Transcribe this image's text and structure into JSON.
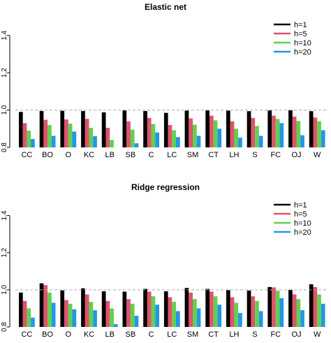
{
  "colors": {
    "h=1": "#000000",
    "h=5": "#df536b",
    "h=10": "#61d04f",
    "h=20": "#2297e6",
    "reference_line": "#aaaaaa",
    "axis": "#000000"
  },
  "chart_data": [
    {
      "type": "bar",
      "title": "Elastic net",
      "xlabel": "",
      "ylabel": "",
      "ylim": [
        0.8,
        1.5
      ],
      "yticks": [
        "0.8",
        "1.0",
        "1.2",
        "1.4"
      ],
      "grid": false,
      "reference_line": 1.0,
      "legend_position": "top-right",
      "categories": [
        "CC",
        "BO",
        "O",
        "KC",
        "LB",
        "SB",
        "C",
        "LC",
        "SM",
        "CT",
        "LH",
        "S",
        "FC",
        "OJ",
        "W"
      ],
      "series": [
        {
          "name": "h=1",
          "values": [
            0.99,
            0.995,
            0.996,
            0.995,
            0.988,
            0.998,
            0.995,
            0.985,
            0.997,
            0.998,
            0.997,
            0.994,
            0.998,
            1.0,
            0.994
          ]
        },
        {
          "name": "h=5",
          "values": [
            0.93,
            0.948,
            0.95,
            0.953,
            0.905,
            0.94,
            0.958,
            0.92,
            0.955,
            0.97,
            0.94,
            0.958,
            0.97,
            0.965,
            0.96
          ]
        },
        {
          "name": "h=10",
          "values": [
            0.89,
            0.92,
            0.927,
            0.905,
            0.84,
            0.895,
            0.925,
            0.892,
            0.922,
            0.945,
            0.9,
            0.915,
            0.952,
            0.942,
            0.94
          ]
        },
        {
          "name": "h=20",
          "values": [
            0.845,
            0.862,
            0.885,
            0.86,
            0.8,
            0.822,
            0.88,
            0.855,
            0.862,
            0.9,
            0.852,
            0.862,
            0.93,
            0.865,
            0.892
          ]
        }
      ]
    },
    {
      "type": "bar",
      "title": "Ridge regression",
      "xlabel": "",
      "ylabel": "",
      "ylim": [
        0.8,
        1.5
      ],
      "yticks": [
        "0.8",
        "1.0",
        "1.2",
        "1.4"
      ],
      "grid": false,
      "reference_line": 1.0,
      "legend_position": "top-right",
      "categories": [
        "CC",
        "BO",
        "O",
        "KC",
        "LB",
        "SB",
        "C",
        "LC",
        "SM",
        "CT",
        "LH",
        "S",
        "FC",
        "OJ",
        "W"
      ],
      "series": [
        {
          "name": "h=1",
          "values": [
            0.985,
            1.035,
            0.997,
            1.008,
            0.992,
            0.99,
            1.005,
            0.992,
            1.01,
            1.005,
            0.998,
            0.996,
            1.015,
            1.0,
            1.03
          ]
        },
        {
          "name": "h=5",
          "values": [
            0.94,
            1.025,
            0.945,
            0.975,
            0.94,
            0.95,
            0.99,
            0.96,
            0.985,
            0.99,
            0.96,
            0.965,
            1.013,
            0.975,
            1.015
          ]
        },
        {
          "name": "h=10",
          "values": [
            0.9,
            0.985,
            0.925,
            0.935,
            0.9,
            0.925,
            0.965,
            0.935,
            0.95,
            0.965,
            0.93,
            0.94,
            0.995,
            0.95,
            0.975
          ]
        },
        {
          "name": "h=20",
          "values": [
            0.85,
            0.93,
            0.895,
            0.89,
            0.815,
            0.86,
            0.92,
            0.885,
            0.9,
            0.92,
            0.875,
            0.885,
            0.955,
            0.89,
            0.925
          ]
        }
      ]
    }
  ]
}
